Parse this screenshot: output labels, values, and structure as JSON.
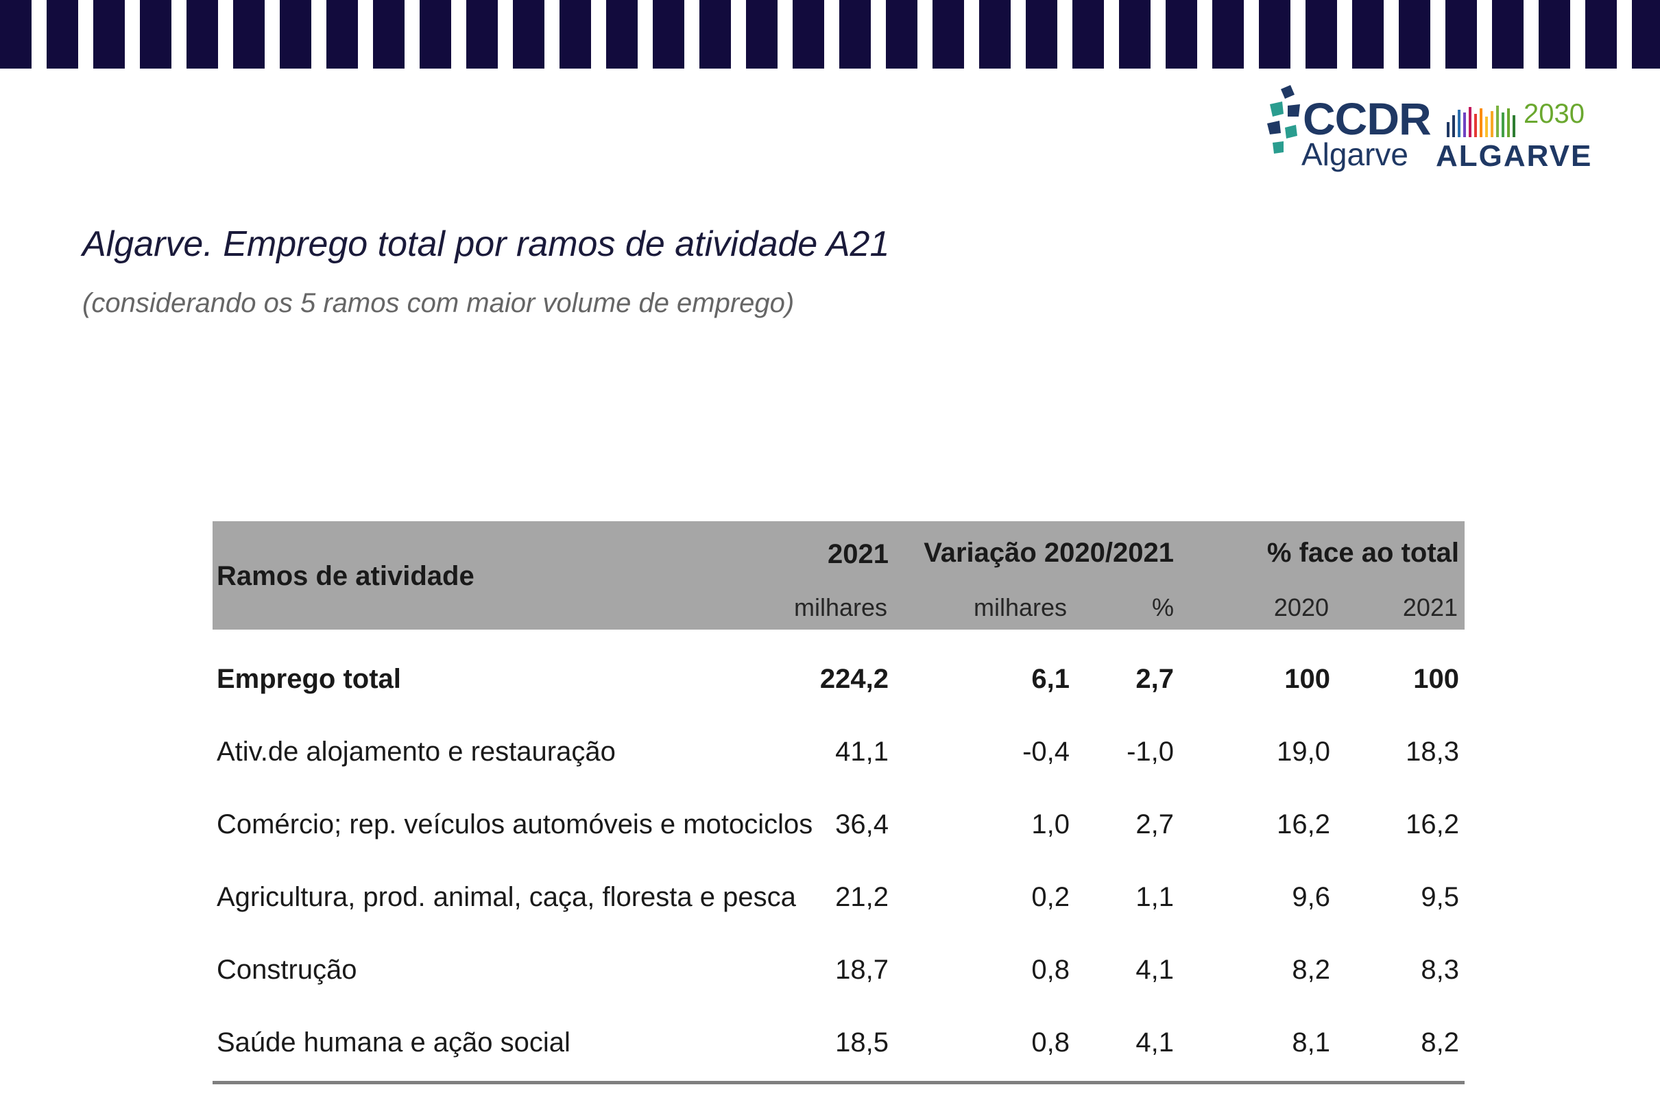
{
  "logos": {
    "ccdr_main": "CCDR",
    "ccdr_sub": "Algarve",
    "program_year": "2030",
    "program_region": "ALGARVE"
  },
  "title": "Algarve. Emprego total por ramos de atividade A21",
  "subtitle": "(considerando os 5 ramos com maior volume de emprego)",
  "table": {
    "header": {
      "col_activity": "Ramos de atividade",
      "col_2021": "2021",
      "col_variacao": "Variação 2020/2021",
      "col_pct_total": "% face ao total",
      "sub_2021": "milhares",
      "sub_var_milhares": "milhares",
      "sub_var_pct": "%",
      "sub_2020": "2020",
      "sub_2021b": "2021"
    },
    "rows": [
      {
        "label": "Emprego total",
        "v2021": "224,2",
        "var_milhares": "6,1",
        "var_pct": "2,7",
        "pct2020": "100",
        "pct2021": "100"
      },
      {
        "label": "Ativ.de alojamento e restauração",
        "v2021": "41,1",
        "var_milhares": "-0,4",
        "var_pct": "-1,0",
        "pct2020": "19,0",
        "pct2021": "18,3"
      },
      {
        "label": "Comércio; rep. veículos automóveis e motociclos",
        "v2021": "36,4",
        "var_milhares": "1,0",
        "var_pct": "2,7",
        "pct2020": "16,2",
        "pct2021": "16,2"
      },
      {
        "label": "Agricultura, prod. animal, caça, floresta e pesca",
        "v2021": "21,2",
        "var_milhares": "0,2",
        "var_pct": "1,1",
        "pct2020": "9,6",
        "pct2021": "9,5"
      },
      {
        "label": "Construção",
        "v2021": "18,7",
        "var_milhares": "0,8",
        "var_pct": "4,1",
        "pct2020": "8,2",
        "pct2021": "8,3"
      },
      {
        "label": "Saúde humana e ação social",
        "v2021": "18,5",
        "var_milhares": "0,8",
        "var_pct": "4,1",
        "pct2020": "8,1",
        "pct2021": "8,2"
      }
    ]
  }
}
